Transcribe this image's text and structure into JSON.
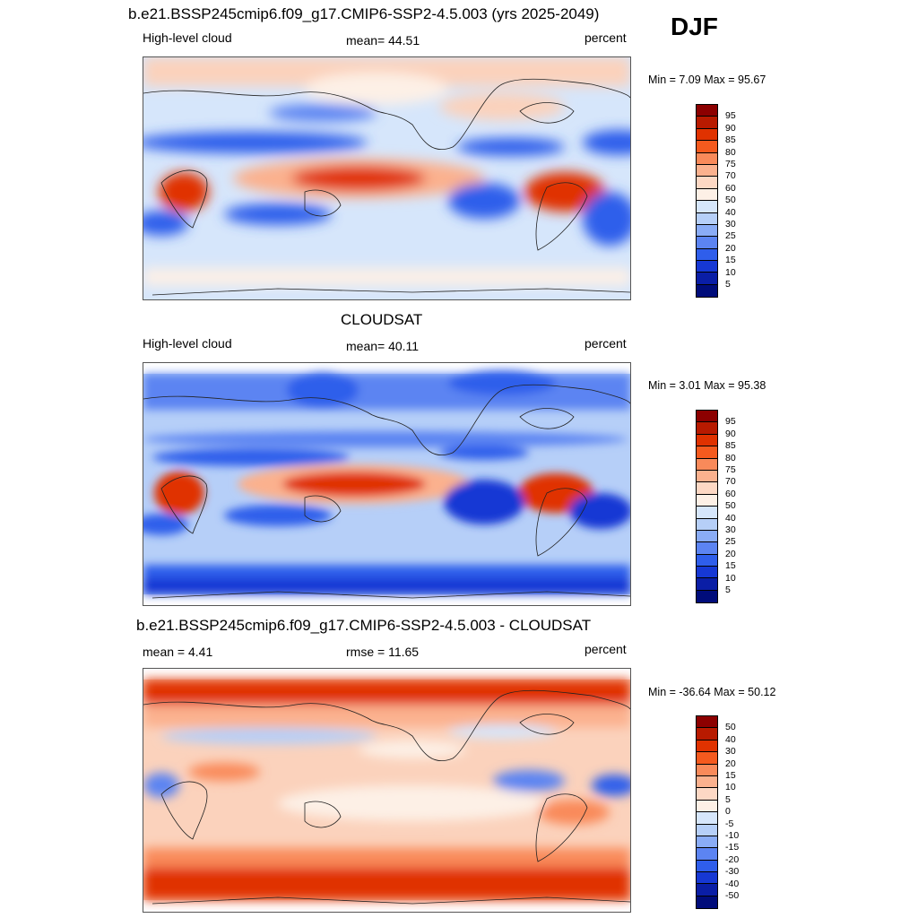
{
  "season": "DJF",
  "panels": [
    {
      "title": "b.e21.BSSP245cmip6.f09_g17.CMIP6-SSP2-4.5.003 (yrs 2025-2049)",
      "left_label": "High-level cloud",
      "center_label": "mean=  44.51",
      "right_label": "percent",
      "minmax": "Min =   7.09 Max =  95.67",
      "colorbar_labels": [
        "95",
        "90",
        "85",
        "80",
        "75",
        "70",
        "60",
        "50",
        "40",
        "30",
        "25",
        "20",
        "15",
        "10",
        "5"
      ]
    },
    {
      "title": "CLOUDSAT",
      "left_label": "High-level cloud",
      "center_label": "mean=  40.11",
      "right_label": "percent",
      "minmax": "Min =   3.01 Max =  95.38",
      "colorbar_labels": [
        "95",
        "90",
        "85",
        "80",
        "75",
        "70",
        "60",
        "50",
        "40",
        "30",
        "25",
        "20",
        "15",
        "10",
        "5"
      ]
    },
    {
      "title": "b.e21.BSSP245cmip6.f09_g17.CMIP6-SSP2-4.5.003 - CLOUDSAT",
      "left_label": "mean =   4.41",
      "center_label": "rmse =  11.65",
      "right_label": "percent",
      "minmax": "Min = -36.64 Max =  50.12",
      "colorbar_labels": [
        "50",
        "40",
        "30",
        "20",
        "15",
        "10",
        "5",
        "0",
        "-5",
        "-10",
        "-15",
        "-20",
        "-30",
        "-40",
        "-50"
      ]
    }
  ],
  "colorbar_colors": [
    "#8c0000",
    "#b81a00",
    "#e03200",
    "#f55a1e",
    "#f98a5a",
    "#fbb18e",
    "#fdd8c4",
    "#fdf0e6",
    "#d6e6fb",
    "#b6cff8",
    "#8aacf6",
    "#5c84f2",
    "#2f5eeb",
    "#1638d4",
    "#0a1ea6",
    "#000c7a"
  ]
}
